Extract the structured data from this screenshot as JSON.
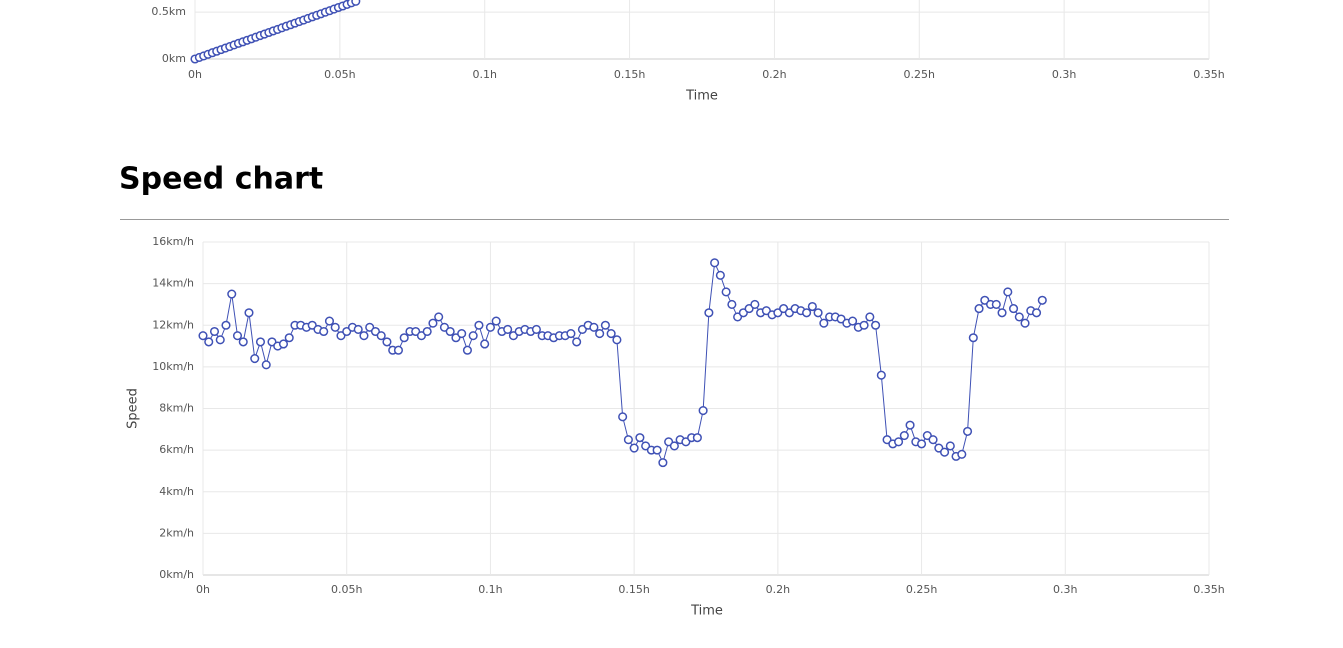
{
  "chart_data": [
    {
      "type": "line",
      "x_label": "Time",
      "color": "#3f51b5",
      "x": [
        0,
        0.0015,
        0.003,
        0.0045,
        0.006,
        0.0075,
        0.009,
        0.0105,
        0.012,
        0.0135,
        0.015,
        0.0165,
        0.018,
        0.0195,
        0.021,
        0.0225,
        0.024,
        0.0255,
        0.027,
        0.0285,
        0.03,
        0.0315,
        0.033,
        0.0345,
        0.036,
        0.0375,
        0.039,
        0.0405,
        0.042,
        0.0435,
        0.045,
        0.0465,
        0.048,
        0.0495,
        0.051,
        0.0525,
        0.054,
        0.0555
      ],
      "values": [
        0,
        0.017,
        0.033,
        0.05,
        0.067,
        0.083,
        0.1,
        0.117,
        0.133,
        0.15,
        0.167,
        0.183,
        0.2,
        0.216,
        0.233,
        0.25,
        0.266,
        0.283,
        0.3,
        0.316,
        0.333,
        0.35,
        0.366,
        0.383,
        0.4,
        0.416,
        0.433,
        0.45,
        0.466,
        0.483,
        0.5,
        0.516,
        0.533,
        0.55,
        0.566,
        0.583,
        0.6,
        0.616
      ],
      "xlim": [
        0,
        0.35
      ],
      "xticks": [
        {
          "value": 0,
          "label": "0h"
        },
        {
          "value": 0.05,
          "label": "0.05h"
        },
        {
          "value": 0.1,
          "label": "0.1h"
        },
        {
          "value": 0.15,
          "label": "0.15h"
        },
        {
          "value": 0.2,
          "label": "0.2h"
        },
        {
          "value": 0.25,
          "label": "0.25h"
        },
        {
          "value": 0.3,
          "label": "0.3h"
        },
        {
          "value": 0.35,
          "label": "0.35h"
        }
      ],
      "ylim": [
        0,
        0.63
      ],
      "yticks": [
        {
          "value": 0,
          "label": "0km"
        },
        {
          "value": 0.5,
          "label": "0.5km"
        }
      ],
      "grid": true
    },
    {
      "type": "line",
      "title": "Speed chart",
      "x_label": "Time",
      "y_label": "Speed",
      "color": "#3f51b5",
      "x": [
        0,
        0.002,
        0.004,
        0.006,
        0.008,
        0.01,
        0.012,
        0.014,
        0.016,
        0.018,
        0.02,
        0.022,
        0.024,
        0.026,
        0.028,
        0.03,
        0.032,
        0.034,
        0.036,
        0.038,
        0.04,
        0.042,
        0.044,
        0.046,
        0.048,
        0.05,
        0.052,
        0.054,
        0.056,
        0.058,
        0.06,
        0.062,
        0.064,
        0.066,
        0.068,
        0.07,
        0.072,
        0.074,
        0.076,
        0.078,
        0.08,
        0.082,
        0.084,
        0.086,
        0.088,
        0.09,
        0.092,
        0.094,
        0.096,
        0.098,
        0.1,
        0.102,
        0.104,
        0.106,
        0.108,
        0.11,
        0.112,
        0.114,
        0.116,
        0.118,
        0.12,
        0.122,
        0.124,
        0.126,
        0.128,
        0.13,
        0.132,
        0.134,
        0.136,
        0.138,
        0.14,
        0.142,
        0.144,
        0.146,
        0.148,
        0.15,
        0.152,
        0.154,
        0.156,
        0.158,
        0.16,
        0.162,
        0.164,
        0.166,
        0.168,
        0.17,
        0.172,
        0.174,
        0.176,
        0.178,
        0.18,
        0.182,
        0.184,
        0.186,
        0.188,
        0.19,
        0.192,
        0.194,
        0.196,
        0.198,
        0.2,
        0.202,
        0.204,
        0.206,
        0.208,
        0.21,
        0.212,
        0.214,
        0.216,
        0.218,
        0.22,
        0.222,
        0.224,
        0.226,
        0.228,
        0.23,
        0.232,
        0.234,
        0.236,
        0.238,
        0.24,
        0.242,
        0.244,
        0.246,
        0.248,
        0.25,
        0.252,
        0.254,
        0.256,
        0.258,
        0.26,
        0.262,
        0.264,
        0.266,
        0.268,
        0.27,
        0.272,
        0.274,
        0.276,
        0.278,
        0.28,
        0.282,
        0.284,
        0.286,
        0.288,
        0.29,
        0.292
      ],
      "values": [
        11.5,
        11.2,
        11.7,
        11.3,
        12.0,
        13.5,
        11.5,
        11.2,
        12.6,
        10.4,
        11.2,
        10.1,
        11.2,
        11.0,
        11.1,
        11.4,
        12.0,
        12.0,
        11.9,
        12.0,
        11.8,
        11.7,
        12.2,
        11.9,
        11.5,
        11.7,
        11.9,
        11.8,
        11.5,
        11.9,
        11.7,
        11.5,
        11.2,
        10.8,
        10.8,
        11.4,
        11.7,
        11.7,
        11.5,
        11.7,
        12.1,
        12.4,
        11.9,
        11.7,
        11.4,
        11.6,
        10.8,
        11.5,
        12.0,
        11.1,
        11.9,
        12.2,
        11.7,
        11.8,
        11.5,
        11.7,
        11.8,
        11.7,
        11.8,
        11.5,
        11.5,
        11.4,
        11.5,
        11.5,
        11.6,
        11.2,
        11.8,
        12.0,
        11.9,
        11.6,
        12.0,
        11.6,
        11.3,
        7.6,
        6.5,
        6.1,
        6.6,
        6.2,
        6.0,
        6.0,
        5.4,
        6.4,
        6.2,
        6.5,
        6.4,
        6.6,
        6.6,
        7.9,
        12.6,
        15.0,
        14.4,
        13.6,
        13.0,
        12.4,
        12.6,
        12.8,
        13.0,
        12.6,
        12.7,
        12.5,
        12.6,
        12.8,
        12.6,
        12.8,
        12.7,
        12.6,
        12.9,
        12.6,
        12.1,
        12.4,
        12.4,
        12.3,
        12.1,
        12.2,
        11.9,
        12.0,
        12.4,
        12.0,
        9.6,
        6.5,
        6.3,
        6.4,
        6.7,
        7.2,
        6.4,
        6.3,
        6.7,
        6.5,
        6.1,
        5.9,
        6.2,
        5.7,
        5.8,
        6.9,
        11.4,
        12.8,
        13.2,
        13.0,
        13.0,
        12.6,
        13.6,
        12.8,
        12.4,
        12.1,
        12.7,
        12.6,
        13.2
      ],
      "xlim": [
        0,
        0.35
      ],
      "xticks": [
        {
          "value": 0,
          "label": "0h"
        },
        {
          "value": 0.05,
          "label": "0.05h"
        },
        {
          "value": 0.1,
          "label": "0.1h"
        },
        {
          "value": 0.15,
          "label": "0.15h"
        },
        {
          "value": 0.2,
          "label": "0.2h"
        },
        {
          "value": 0.25,
          "label": "0.25h"
        },
        {
          "value": 0.3,
          "label": "0.3h"
        },
        {
          "value": 0.35,
          "label": "0.35h"
        }
      ],
      "ylim": [
        0,
        16
      ],
      "yticks": [
        {
          "value": 0,
          "label": "0km/h"
        },
        {
          "value": 2,
          "label": "2km/h"
        },
        {
          "value": 4,
          "label": "4km/h"
        },
        {
          "value": 6,
          "label": "6km/h"
        },
        {
          "value": 8,
          "label": "8km/h"
        },
        {
          "value": 10,
          "label": "10km/h"
        },
        {
          "value": 12,
          "label": "12km/h"
        },
        {
          "value": 14,
          "label": "14km/h"
        },
        {
          "value": 16,
          "label": "16km/h"
        }
      ],
      "grid": true
    }
  ]
}
